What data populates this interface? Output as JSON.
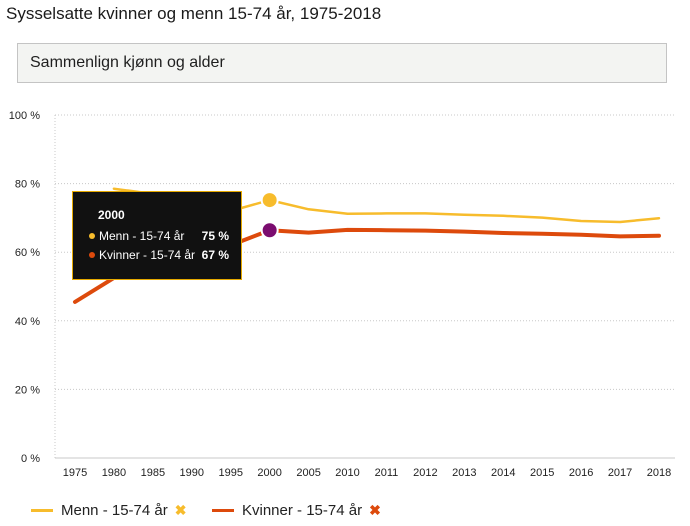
{
  "page": {
    "title": "Sysselsatte kvinner og menn 15-74 år, 1975-2018"
  },
  "selector": {
    "label": "Sammenlign kjønn og alder"
  },
  "legend": {
    "menn_label": "Menn - 15-74 år",
    "kvinner_label": "Kvinner - 15-74 år",
    "remove_symbol": "✖"
  },
  "tooltip": {
    "year": "2000",
    "rows": [
      {
        "label": "Menn - 15-74 år",
        "value": "75 %"
      },
      {
        "label": "Kvinner - 15-74 år",
        "value": "67 %"
      }
    ]
  },
  "colors": {
    "menn": "#f7bc2c",
    "kvinner": "#dd4a0c",
    "kvinner_marker": "#7b0c6f",
    "grid": "#c8c8c8",
    "tooltip_border": "#e6a900"
  },
  "chart_data": {
    "type": "line",
    "categories": [
      "1975",
      "1980",
      "1985",
      "1990",
      "1995",
      "2000",
      "2005",
      "2010",
      "2011",
      "2012",
      "2013",
      "2014",
      "2015",
      "2016",
      "2017",
      "2018"
    ],
    "series": [
      {
        "name": "Menn - 15-74 år",
        "values": [
          null,
          78.5,
          77,
          74,
          72,
          75.2,
          72.5,
          71.2,
          71.3,
          71.3,
          70.9,
          70.6,
          70.1,
          69.1,
          68.8,
          69.9
        ]
      },
      {
        "name": "Kvinner - 15-74 år",
        "values": [
          45.5,
          52.5,
          57,
          61.5,
          62,
          66.4,
          65.7,
          66.5,
          66.4,
          66.3,
          66,
          65.6,
          65.4,
          65.1,
          64.6,
          64.8
        ]
      }
    ],
    "yticks": [
      "0 %",
      "20 %",
      "40 %",
      "60 %",
      "80 %",
      "100 %"
    ],
    "ylim": [
      0,
      100
    ],
    "highlight_category": "2000",
    "grid": true,
    "legend_position": "bottom-left"
  }
}
